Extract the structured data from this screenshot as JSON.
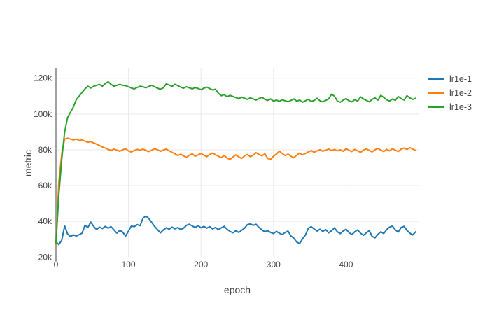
{
  "chart_data": {
    "type": "line",
    "title": "",
    "xlabel": "epoch",
    "ylabel": "metric",
    "x_ticks": [
      0,
      100,
      200,
      300,
      400
    ],
    "x_tick_labels": [
      "0",
      "100",
      "200",
      "300",
      "400"
    ],
    "y_ticks_k": [
      20,
      40,
      60,
      80,
      100,
      120
    ],
    "y_tick_labels": [
      "20k",
      "40k",
      "60k",
      "80k",
      "100k",
      "120k"
    ],
    "x_range": [
      0,
      500
    ],
    "y_range_k": [
      20,
      125.7
    ],
    "y_unit": "thousands",
    "grid": true,
    "legend_position": "right",
    "x_start": 0,
    "x_step": 4,
    "series": [
      {
        "name": "lr1e-1",
        "color": "#1f77b4",
        "values_k": [
          28.5,
          27,
          29.5,
          37.5,
          33,
          31.5,
          32.5,
          31.8,
          32.6,
          33.4,
          37.8,
          36.6,
          39.6,
          37.2,
          35.4,
          36.8,
          36,
          37.2,
          36.2,
          37,
          35.2,
          33.4,
          35,
          34,
          31.8,
          34.6,
          37.4,
          37,
          38.2,
          37.6,
          41.8,
          43,
          41.6,
          39.4,
          37.2,
          35.4,
          33.6,
          35.2,
          36.4,
          35.6,
          36.8,
          35.8,
          36.6,
          35.4,
          36.2,
          37.8,
          38.4,
          37.4,
          36.6,
          37.6,
          36.4,
          37.2,
          36.2,
          37,
          35.8,
          36.6,
          35.4,
          36.4,
          37.2,
          35.6,
          34.4,
          33.6,
          34.8,
          33.8,
          35,
          36.2,
          38.2,
          38.6,
          37.8,
          38.4,
          36.6,
          35.2,
          34.2,
          34.8,
          33.8,
          33.2,
          34.4,
          33.4,
          32.6,
          33.8,
          34.6,
          31.8,
          30.6,
          28.4,
          27.6,
          30.2,
          32.4,
          36.2,
          37,
          35.8,
          34.6,
          35.6,
          34.4,
          35.4,
          33.6,
          34.8,
          36.4,
          34.2,
          33.2,
          34.6,
          35.6,
          33.8,
          32.6,
          34.2,
          35.2,
          33.4,
          32.2,
          33.6,
          34.8,
          31.6,
          30.8,
          32.8,
          34.2,
          33.2,
          35.4,
          36.8,
          37.4,
          35.2,
          34,
          36.6,
          37.2,
          35,
          33.4,
          32.4,
          34.2
        ]
      },
      {
        "name": "lr1e-2",
        "color": "#ff7f0e",
        "values_k": [
          27,
          62,
          78,
          86,
          86.5,
          86,
          85.5,
          86,
          85.2,
          85.6,
          84.8,
          84.2,
          84.6,
          83.8,
          83.2,
          82.4,
          81.6,
          81,
          80.2,
          79.6,
          80.4,
          79.8,
          79.2,
          80,
          80.6,
          79.4,
          78.8,
          79.6,
          80.2,
          79.8,
          80.4,
          79.6,
          79,
          79.8,
          80.6,
          80,
          79.2,
          79.8,
          80.4,
          79.4,
          78.6,
          77.8,
          76.8,
          77.6,
          76.6,
          75.8,
          77,
          77.8,
          76.4,
          77.2,
          78,
          77,
          76.2,
          77.4,
          78.2,
          77.2,
          76.4,
          75.6,
          76.8,
          75.4,
          74.6,
          76,
          77.2,
          76,
          75.2,
          76.6,
          77.4,
          76.2,
          77,
          78.4,
          77.4,
          76.6,
          77.8,
          75.2,
          74.6,
          76.4,
          77.6,
          79.2,
          78,
          76.8,
          77.6,
          76.4,
          75.6,
          77,
          78.2,
          77.2,
          78,
          78.8,
          79.6,
          78.6,
          79.4,
          80,
          79.2,
          79.8,
          80.4,
          79.6,
          80.2,
          79.4,
          80,
          79.2,
          80.6,
          79.8,
          79,
          80.2,
          79.4,
          78.6,
          79.8,
          80.6,
          79.6,
          78.8,
          80,
          80.8,
          79.8,
          79,
          80.2,
          79.4,
          80.6,
          79.8,
          79,
          80.4,
          81,
          80.2,
          81.2,
          80.4,
          79.6
        ]
      },
      {
        "name": "lr1e-3",
        "color": "#2ca02c",
        "values_k": [
          28,
          55,
          75,
          90,
          98,
          101,
          104,
          108,
          110,
          112,
          114,
          115.5,
          114.5,
          115.5,
          116,
          116.5,
          115.5,
          117,
          118,
          116.5,
          115.5,
          116,
          116.5,
          116,
          115.8,
          115.2,
          114.5,
          114,
          114.8,
          115.5,
          115.2,
          114.6,
          115.4,
          116,
          115.2,
          114.4,
          113.8,
          114.6,
          116.8,
          116.2,
          115.4,
          116.6,
          115.8,
          115,
          114.4,
          115.2,
          114.6,
          114,
          114.8,
          114.2,
          113.6,
          114.4,
          115,
          114.2,
          113.4,
          113.8,
          111.5,
          110.2,
          110.8,
          109.6,
          110.4,
          109.8,
          109.2,
          108.6,
          109.4,
          108.8,
          108.2,
          109,
          108.4,
          107.8,
          108.6,
          109.4,
          108.2,
          107.6,
          108.4,
          107.2,
          107.8,
          107,
          108,
          107.4,
          106.8,
          107.6,
          108.4,
          107.2,
          107.8,
          106.6,
          107.4,
          108.2,
          107,
          107.6,
          108.8,
          107.4,
          106.8,
          107.6,
          108.4,
          111,
          110,
          107.2,
          106.6,
          107.8,
          108.6,
          107.4,
          106.8,
          108,
          107.2,
          109.6,
          108.4,
          107.6,
          106.8,
          108.2,
          109,
          107.8,
          110.4,
          109.2,
          108,
          107.2,
          108.4,
          107.6,
          109.8,
          108.6,
          107.8,
          110.2,
          109,
          108.2,
          108.8
        ]
      }
    ]
  },
  "colors": {
    "background": "#ffffff",
    "grid": "#e9e9e9",
    "zeroline": "#969696",
    "axis_text": "#444444"
  }
}
